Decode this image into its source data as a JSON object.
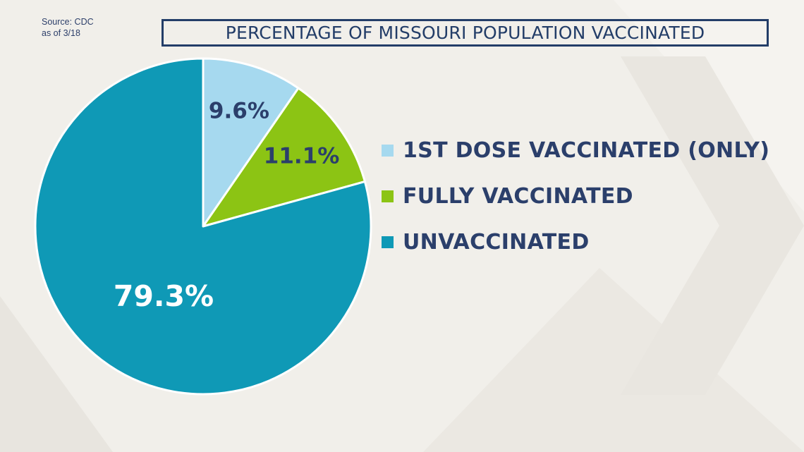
{
  "source": {
    "line1": "Source: CDC",
    "line2": "as of 3/18"
  },
  "chart_data": {
    "type": "pie",
    "title": "PERCENTAGE OF MISSOURI POPULATION VACCINATED",
    "unit": "%",
    "legend_position": "right",
    "slices": [
      {
        "label": "1ST DOSE VACCINATED (ONLY)",
        "value": 9.6,
        "display": "9.6%",
        "color": "#a6d9ef",
        "text_color": "#2b3f6b"
      },
      {
        "label": "FULLY VACCINATED",
        "value": 11.1,
        "display": "11.1%",
        "color": "#8cc414",
        "text_color": "#2b3f6b"
      },
      {
        "label": "UNVACCINATED",
        "value": 79.3,
        "display": "79.3%",
        "color": "#0f99b6",
        "text_color": "#ffffff"
      }
    ]
  },
  "colors": {
    "background": "#f1efea",
    "title": "#233d68",
    "legend_text": "#2b3f6b"
  }
}
